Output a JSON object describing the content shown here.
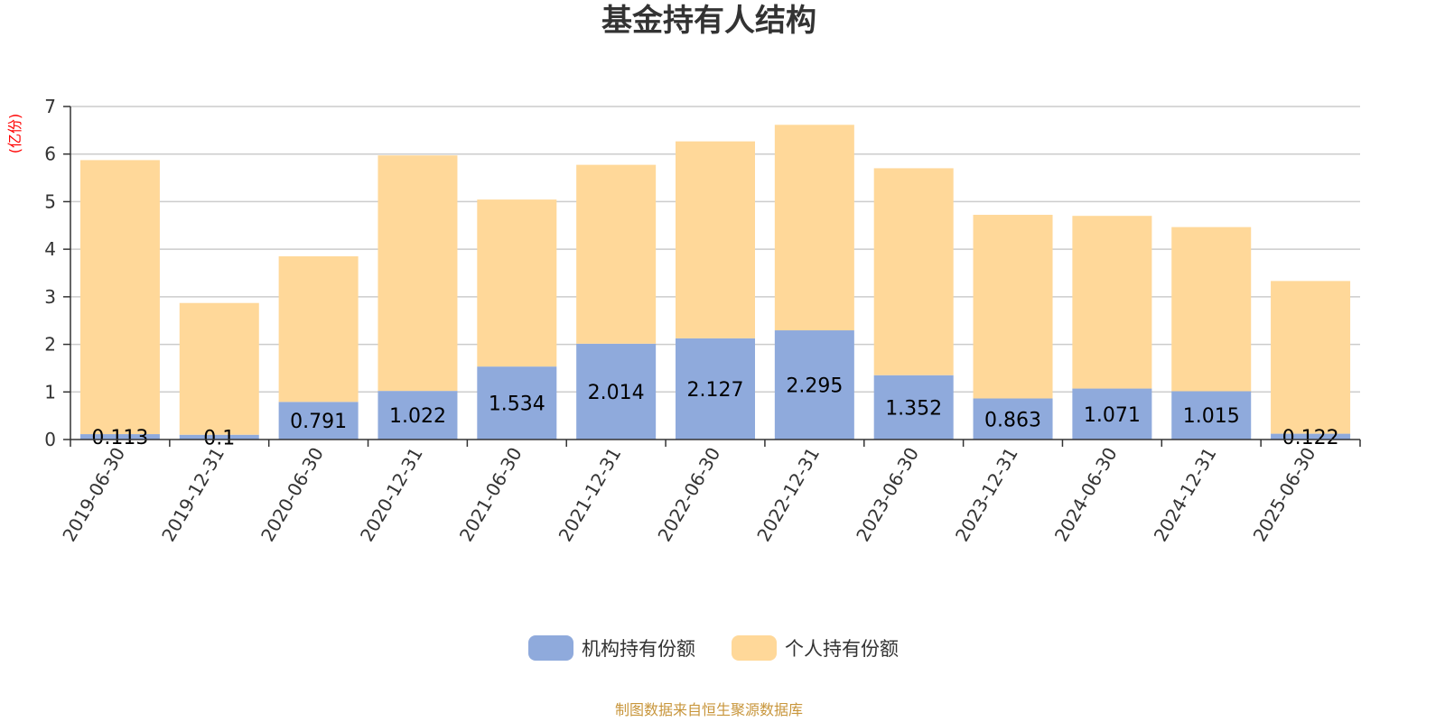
{
  "chart_data": {
    "type": "bar",
    "stacked": true,
    "title": "基金持有人结构",
    "ylabel": "(亿份)",
    "ylim": [
      0,
      7
    ],
    "yticks": [
      0,
      1,
      2,
      3,
      4,
      5,
      6,
      7
    ],
    "grid": true,
    "legend_position": "bottom",
    "categories": [
      "2019-06-30",
      "2019-12-31",
      "2020-06-30",
      "2020-12-31",
      "2021-06-30",
      "2021-12-31",
      "2022-06-30",
      "2022-12-31",
      "2023-06-30",
      "2023-12-31",
      "2024-06-30",
      "2024-12-31",
      "2025-06-30"
    ],
    "series": [
      {
        "name": "机构持有份额",
        "color": "#8faadc",
        "values": [
          0.113,
          0.1,
          0.791,
          1.022,
          1.534,
          2.014,
          2.127,
          2.295,
          1.352,
          0.863,
          1.071,
          1.015,
          0.122
        ],
        "labels": [
          "0.113",
          "0.1",
          "0.791",
          "1.022",
          "1.534",
          "2.014",
          "2.127",
          "2.295",
          "1.352",
          "0.863",
          "1.071",
          "1.015",
          "0.122"
        ]
      },
      {
        "name": "个人持有份额",
        "color": "#ffd899",
        "values": [
          5.76,
          2.77,
          3.06,
          4.95,
          3.51,
          3.76,
          4.14,
          4.32,
          4.35,
          3.86,
          3.63,
          3.45,
          3.21
        ]
      }
    ],
    "source": "制图数据来自恒生聚源数据库"
  }
}
